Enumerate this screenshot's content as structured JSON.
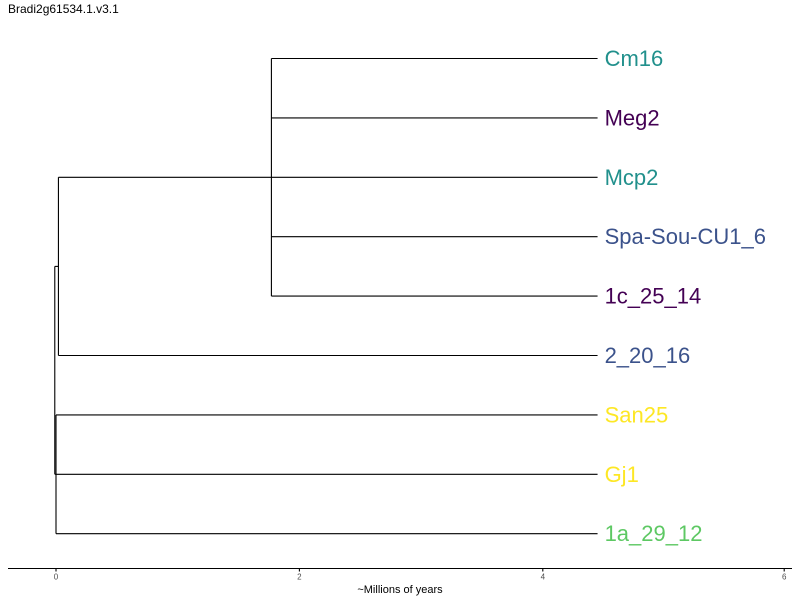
{
  "title": "Bradi2g61534.1.v3.1",
  "colors": {
    "teal": "#21908C",
    "purple": "#440154",
    "blue": "#3B528B",
    "yellow": "#FDE725",
    "green": "#5DC863",
    "branch": "#000000"
  },
  "chart_data": {
    "type": "dendrogram",
    "xlabel": "~Millions of years",
    "xlim": [
      -0.4,
      6
    ],
    "xticks": [
      0,
      2,
      4,
      6
    ],
    "tips": [
      {
        "label": "Cm16",
        "color": "#21908C"
      },
      {
        "label": "Meg2",
        "color": "#440154"
      },
      {
        "label": "Mcp2",
        "color": "#21908C"
      },
      {
        "label": "Spa-Sou-CU1_6",
        "color": "#3B528B"
      },
      {
        "label": "1c_25_14",
        "color": "#440154"
      },
      {
        "label": "2_20_16",
        "color": "#3B528B"
      },
      {
        "label": "San25",
        "color": "#FDE725"
      },
      {
        "label": "Gj1",
        "color": "#FDE725"
      },
      {
        "label": "1a_29_12",
        "color": "#5DC863"
      }
    ],
    "tip_x": 4.45,
    "tree": {
      "x": -0.01,
      "children": [
        {
          "x": 0.02,
          "children": [
            {
              "x": 1.77,
              "children": [
                {
                  "tip": 0
                },
                {
                  "tip": 1
                },
                {
                  "tip": 2
                },
                {
                  "tip": 3
                },
                {
                  "tip": 4
                }
              ]
            },
            {
              "tip": 5
            }
          ]
        },
        {
          "x": 0.0,
          "children": [
            {
              "tip": 6
            },
            {
              "tip": 7
            },
            {
              "tip": 8
            }
          ]
        }
      ]
    }
  }
}
